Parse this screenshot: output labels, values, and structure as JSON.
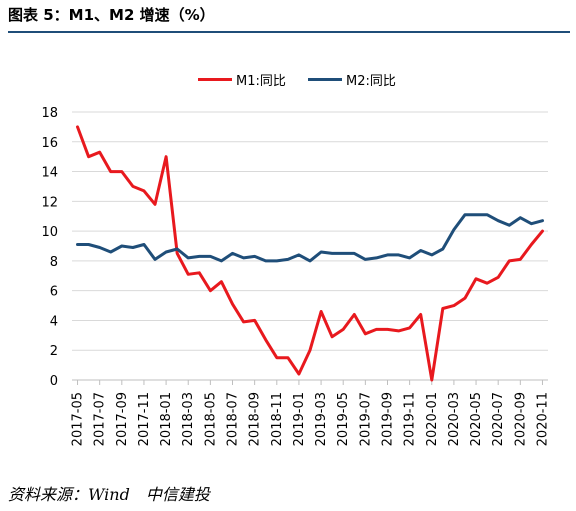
{
  "figure": {
    "title": "图表 5：M1、M2 增速（%）",
    "source": "资料来源：Wind　中信建投"
  },
  "chart_data": {
    "type": "line",
    "title": "",
    "xlabel": "",
    "ylabel": "",
    "ylim": [
      0,
      18
    ],
    "yticks": [
      "0",
      "2",
      "4",
      "6",
      "8",
      "10",
      "12",
      "14",
      "16",
      "18"
    ],
    "grid": "horizontal",
    "legend_position": "top",
    "x": [
      "2017-05",
      "2017-06",
      "2017-07",
      "2017-08",
      "2017-09",
      "2017-10",
      "2017-11",
      "2017-12",
      "2018-01",
      "2018-02",
      "2018-03",
      "2018-04",
      "2018-05",
      "2018-06",
      "2018-07",
      "2018-08",
      "2018-09",
      "2018-10",
      "2018-11",
      "2018-12",
      "2019-01",
      "2019-02",
      "2019-03",
      "2019-04",
      "2019-05",
      "2019-06",
      "2019-07",
      "2019-08",
      "2019-09",
      "2019-10",
      "2019-11",
      "2019-12",
      "2020-01",
      "2020-02",
      "2020-03",
      "2020-04",
      "2020-05",
      "2020-06",
      "2020-07",
      "2020-08",
      "2020-09",
      "2020-10",
      "2020-11"
    ],
    "xtick_labels": [
      "2017-05",
      "2017-07",
      "2017-09",
      "2017-11",
      "2018-01",
      "2018-03",
      "2018-05",
      "2018-07",
      "2018-09",
      "2018-11",
      "2019-01",
      "2019-03",
      "2019-05",
      "2019-07",
      "2019-09",
      "2019-11",
      "2020-01",
      "2020-03",
      "2020-05",
      "2020-07",
      "2020-09",
      "2020-11"
    ],
    "series": [
      {
        "name": "M1:同比",
        "color": "#e8191e",
        "values": [
          17.0,
          15.0,
          15.3,
          14.0,
          14.0,
          13.0,
          12.7,
          11.8,
          15.0,
          8.5,
          7.1,
          7.2,
          6.0,
          6.6,
          5.1,
          3.9,
          4.0,
          2.7,
          1.5,
          1.5,
          0.4,
          2.0,
          4.6,
          2.9,
          3.4,
          4.4,
          3.1,
          3.4,
          3.4,
          3.3,
          3.5,
          4.4,
          0.0,
          4.8,
          5.0,
          5.5,
          6.8,
          6.5,
          6.9,
          8.0,
          8.1,
          9.1,
          10.0
        ]
      },
      {
        "name": "M2:同比",
        "color": "#1f4e79",
        "values": [
          9.1,
          9.1,
          8.9,
          8.6,
          9.0,
          8.9,
          9.1,
          8.1,
          8.6,
          8.8,
          8.2,
          8.3,
          8.3,
          8.0,
          8.5,
          8.2,
          8.3,
          8.0,
          8.0,
          8.1,
          8.4,
          8.0,
          8.6,
          8.5,
          8.5,
          8.5,
          8.1,
          8.2,
          8.4,
          8.4,
          8.2,
          8.7,
          8.4,
          8.8,
          10.1,
          11.1,
          11.1,
          11.1,
          10.7,
          10.4,
          10.9,
          10.5,
          10.7
        ]
      }
    ]
  }
}
